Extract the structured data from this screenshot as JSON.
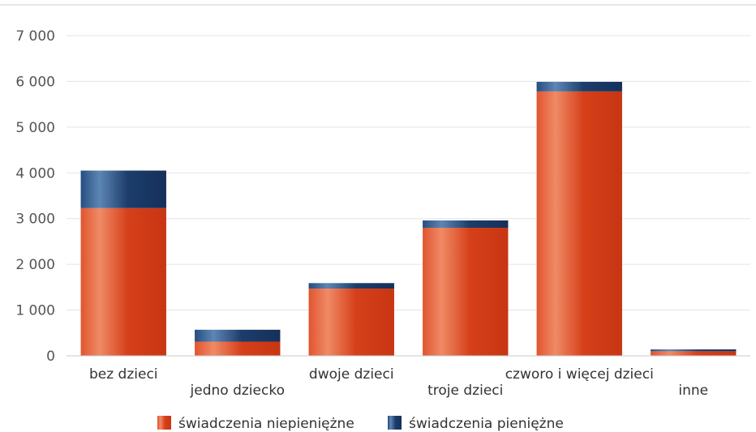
{
  "chart_data": {
    "type": "bar",
    "stacked": true,
    "categories": [
      "bez dzieci",
      "jedno dziecko",
      "dwoje dzieci",
      "troje dzieci",
      "czworo i więcej dzieci",
      "inne"
    ],
    "series": [
      {
        "name": "świadczenia niepieniężne",
        "values": [
          3230,
          310,
          1470,
          2800,
          5780,
          100
        ],
        "color": "#d9411a"
      },
      {
        "name": "świadczenia pieniężne",
        "values": [
          820,
          260,
          120,
          160,
          210,
          40
        ],
        "color": "#1d3f6e"
      }
    ],
    "y_ticks": [
      "0",
      "1 000",
      "2 000",
      "3 000",
      "4 000",
      "5 000",
      "6 000",
      "7 000"
    ],
    "ylim": [
      0,
      7000
    ],
    "grid": true,
    "legend": "bottom-center"
  }
}
